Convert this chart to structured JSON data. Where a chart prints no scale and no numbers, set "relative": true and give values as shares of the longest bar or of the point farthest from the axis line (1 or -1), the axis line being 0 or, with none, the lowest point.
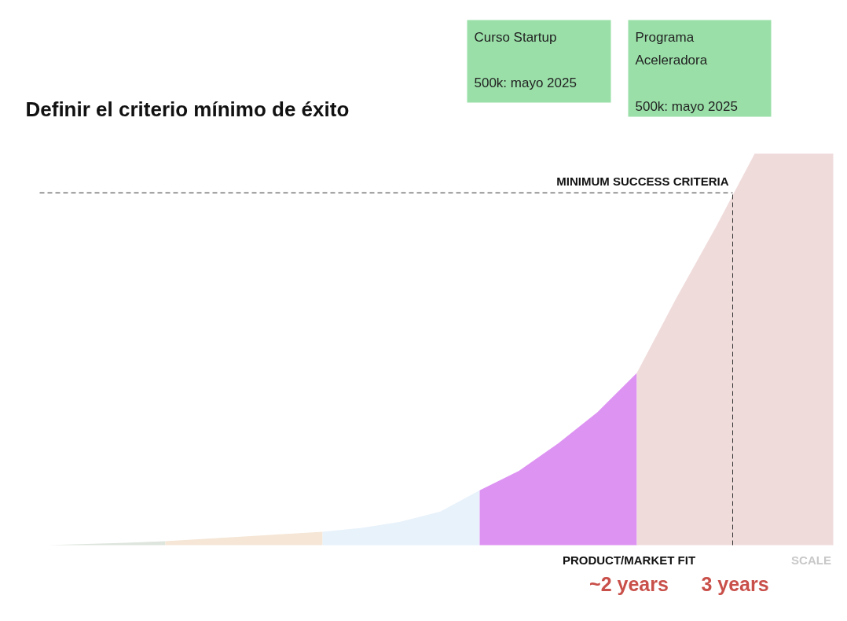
{
  "chart_data": {
    "type": "area",
    "relative": true,
    "title": "Definir el criterio mínimo de éxito",
    "categories": [
      null,
      null,
      null,
      null,
      null,
      null,
      null,
      null,
      null,
      null,
      null,
      null,
      null,
      null,
      null,
      null,
      null,
      null,
      null,
      null,
      null
    ],
    "series": [
      {
        "color": "#dde5dd",
        "values": [
          0,
          0.003,
          0.006,
          0.01,
          null,
          null,
          null,
          null,
          null,
          null,
          null,
          null,
          null,
          null,
          null,
          null,
          null,
          null,
          null,
          null,
          null
        ]
      },
      {
        "color": "#f5e6d6",
        "values": [
          null,
          null,
          null,
          0.01,
          0.016,
          0.022,
          0.028,
          0.034,
          null,
          null,
          null,
          null,
          null,
          null,
          null,
          null,
          null,
          null,
          null,
          null,
          null
        ]
      },
      {
        "color": "#e8f2fb",
        "values": [
          null,
          null,
          null,
          null,
          null,
          null,
          null,
          0.034,
          0.044,
          0.06,
          0.086,
          0.14,
          null,
          null,
          null,
          null,
          null,
          null,
          null,
          null,
          null
        ]
      },
      {
        "color": "#dd93f2",
        "values": [
          null,
          null,
          null,
          null,
          null,
          null,
          null,
          null,
          null,
          null,
          null,
          0.14,
          0.19,
          0.26,
          0.34,
          0.44,
          null,
          null,
          null,
          null,
          null
        ]
      },
      {
        "color": "#f0dbdb",
        "values": [
          null,
          null,
          null,
          null,
          null,
          null,
          null,
          null,
          null,
          null,
          null,
          null,
          null,
          null,
          null,
          0.44,
          0.63,
          0.81,
          1.0,
          1.0,
          1.0
        ]
      }
    ],
    "ref_lines": [
      {
        "axis": "y",
        "value": 0.9,
        "label": "MINIMUM SUCCESS CRITERIA",
        "line_style": "dashed",
        "color": "#333333"
      }
    ],
    "annotations": [
      "Curso Startup\n\n500k: mayo 2025",
      "Programa\nAceleradora\n\n500k: mayo 2025",
      "PRODUCT/MARKET FIT",
      "~2 years",
      "3 years",
      "SCALE"
    ]
  }
}
